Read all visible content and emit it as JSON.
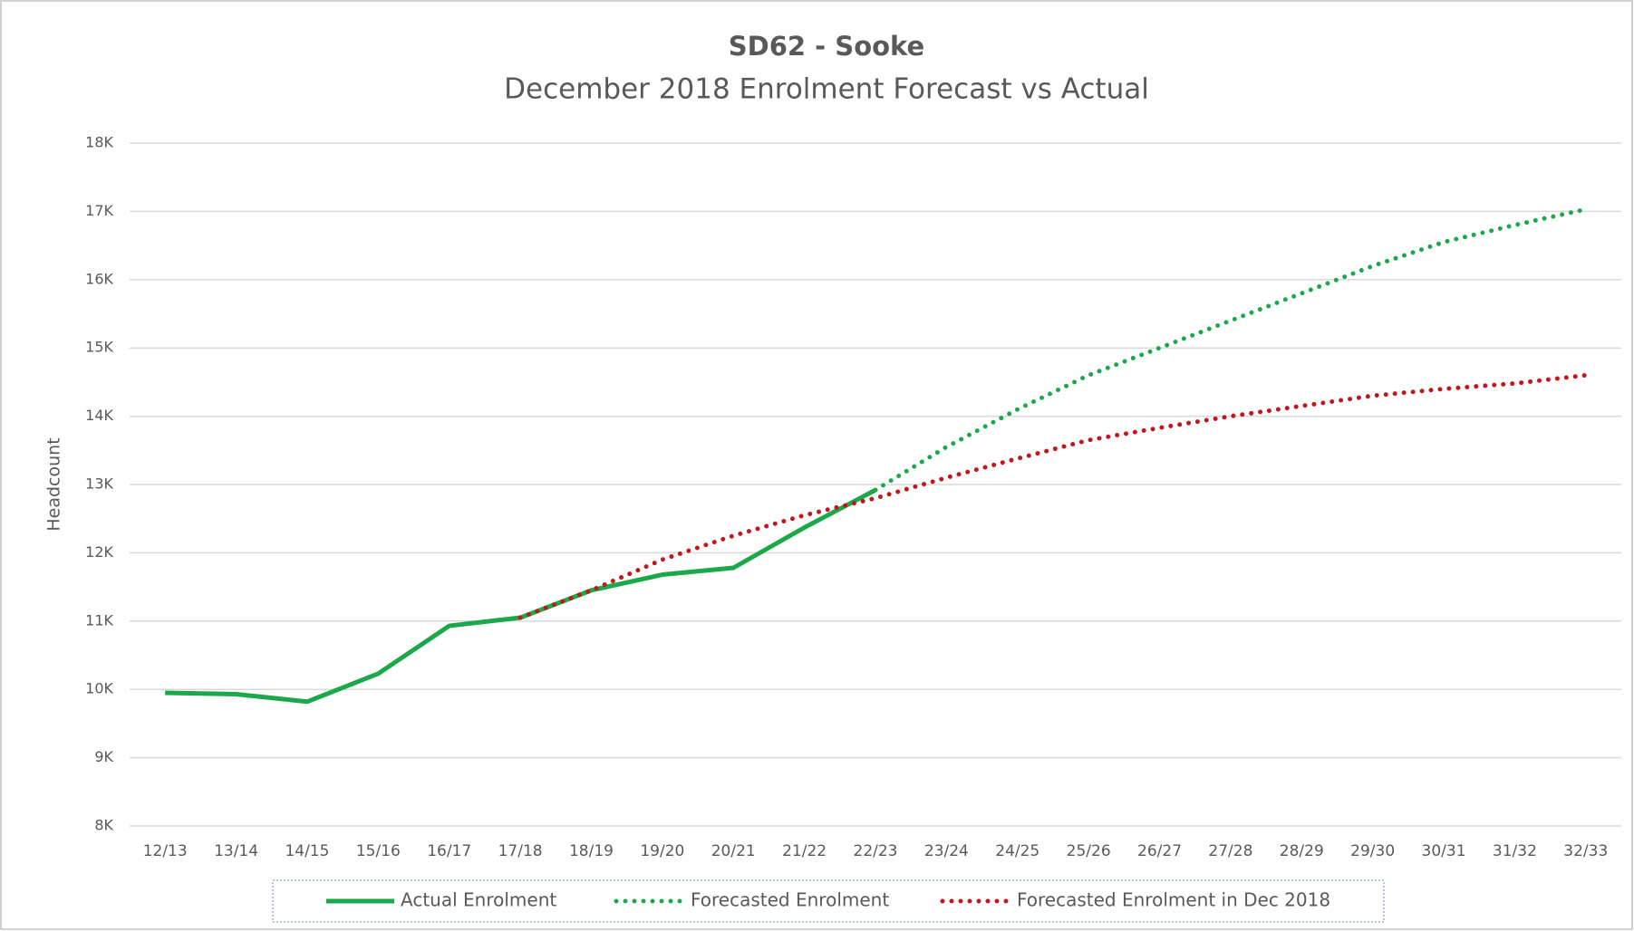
{
  "chart_data": {
    "type": "line",
    "title": "SD62 - Sooke",
    "subtitle": "December 2018 Enrolment Forecast vs Actual",
    "y_label": "Headcount",
    "categories": [
      "12/13",
      "13/14",
      "14/15",
      "15/16",
      "16/17",
      "17/18",
      "18/19",
      "19/20",
      "20/21",
      "21/22",
      "22/23",
      "23/24",
      "24/25",
      "25/26",
      "26/27",
      "27/28",
      "28/29",
      "29/30",
      "30/31",
      "31/32",
      "32/33"
    ],
    "series": [
      {
        "name": "Actual Enrolment",
        "color": "#1aa84a",
        "style": "solid",
        "values": [
          9950,
          9930,
          9820,
          10230,
          10930,
          11050,
          11450,
          11680,
          11780,
          12370,
          12920,
          null,
          null,
          null,
          null,
          null,
          null,
          null,
          null,
          null,
          null
        ]
      },
      {
        "name": "Forecasted Enrolment",
        "color": "#1aa84a",
        "style": "dotted",
        "values": [
          null,
          null,
          null,
          null,
          null,
          null,
          null,
          null,
          null,
          null,
          12920,
          13550,
          14100,
          14600,
          15000,
          15400,
          15800,
          16200,
          16550,
          16800,
          17030
        ]
      },
      {
        "name": "Forecasted Enrolment in Dec 2018",
        "color": "#c0161c",
        "style": "dotted",
        "values": [
          null,
          null,
          null,
          null,
          null,
          11050,
          11450,
          11900,
          12250,
          12550,
          12800,
          13100,
          13380,
          13650,
          13830,
          14000,
          14150,
          14300,
          14400,
          14480,
          14600
        ]
      }
    ],
    "ylim": [
      8000,
      18000
    ],
    "yticks": [
      {
        "value": 8000,
        "label": "8K"
      },
      {
        "value": 9000,
        "label": "9K"
      },
      {
        "value": 10000,
        "label": "10K"
      },
      {
        "value": 11000,
        "label": "11K"
      },
      {
        "value": 12000,
        "label": "12K"
      },
      {
        "value": 13000,
        "label": "13K"
      },
      {
        "value": 14000,
        "label": "14K"
      },
      {
        "value": 15000,
        "label": "15K"
      },
      {
        "value": 16000,
        "label": "16K"
      },
      {
        "value": 17000,
        "label": "17K"
      },
      {
        "value": 18000,
        "label": "18K"
      }
    ],
    "grid": true,
    "legend": "bottom"
  }
}
